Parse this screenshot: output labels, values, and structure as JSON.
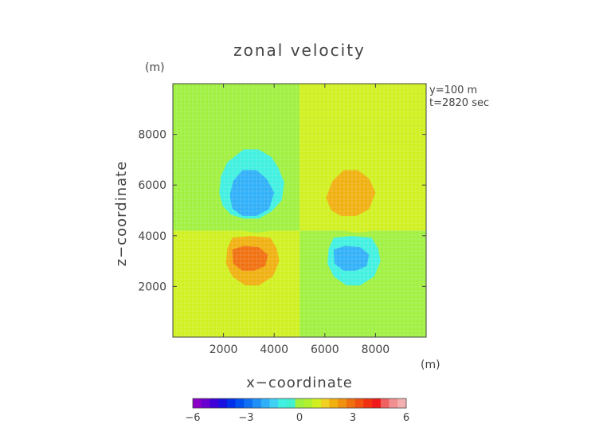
{
  "chart_data": {
    "type": "heatmap",
    "title": "zonal velocity",
    "xlabel": "x−coordinate",
    "ylabel": "z−coordinate",
    "x_unit": "(m)",
    "y_unit": "(m)",
    "annotations": [
      "y=100 m",
      "t=2820 sec"
    ],
    "xlim": [
      0,
      10000
    ],
    "ylim": [
      0,
      10000
    ],
    "x_ticks": [
      2000,
      4000,
      6000,
      8000
    ],
    "x_tick_labels": [
      "2000",
      "4000",
      "6000",
      "8000"
    ],
    "y_ticks": [
      2000,
      4000,
      6000,
      8000
    ],
    "y_tick_labels": [
      "2000",
      "4000",
      "6000",
      "8000"
    ],
    "colorbar": {
      "min": -6,
      "max": 6,
      "tick_values": [
        -6,
        -3,
        0,
        3,
        6
      ],
      "tick_labels": [
        "−6",
        "−3",
        "0",
        "3",
        "6"
      ],
      "colors": [
        "#8a00c8",
        "#6a00d0",
        "#4000d8",
        "#1a10e0",
        "#0030ea",
        "#0050f0",
        "#1070f4",
        "#2090f8",
        "#30b0f8",
        "#40d0f4",
        "#40f0e0",
        "#40f0d0",
        "#a0f040",
        "#b0f030",
        "#d0f020",
        "#f0d020",
        "#f0b010",
        "#f09010",
        "#f07010",
        "#f05010",
        "#f03010",
        "#f01818",
        "#f06060",
        "#f09090",
        "#f4b0b0"
      ]
    },
    "field": {
      "background": [
        {
          "x": [
            0,
            5000
          ],
          "z": [
            4200,
            10000
          ],
          "value": 0
        },
        {
          "x": [
            5000,
            10000
          ],
          "z": [
            4200,
            10000
          ],
          "value": 1
        },
        {
          "x": [
            0,
            5000
          ],
          "z": [
            0,
            4200
          ],
          "value": 1
        },
        {
          "x": [
            5000,
            10000
          ],
          "z": [
            0,
            4200
          ],
          "value": 0
        }
      ],
      "contours": [
        {
          "value": -1,
          "points": [
            [
              2800,
              7410
            ],
            [
              3380,
              7410
            ],
            [
              3900,
              7100
            ],
            [
              4180,
              6650
            ],
            [
              4400,
              6100
            ],
            [
              4300,
              5400
            ],
            [
              3900,
              4960
            ],
            [
              3400,
              4680
            ],
            [
              2800,
              4680
            ],
            [
              2300,
              4830
            ],
            [
              1970,
              5180
            ],
            [
              1830,
              5700
            ],
            [
              1900,
              6350
            ],
            [
              2150,
              6900
            ]
          ]
        },
        {
          "value": -2,
          "points": [
            [
              2750,
              6590
            ],
            [
              3300,
              6590
            ],
            [
              3700,
              6250
            ],
            [
              4000,
              5700
            ],
            [
              3800,
              5050
            ],
            [
              3300,
              4780
            ],
            [
              2750,
              4780
            ],
            [
              2350,
              5070
            ],
            [
              2250,
              5600
            ],
            [
              2380,
              6150
            ]
          ]
        },
        {
          "value": 1,
          "points": [
            [
              6800,
              7410
            ],
            [
              7380,
              7400
            ],
            [
              8000,
              7000
            ],
            [
              8350,
              6400
            ],
            [
              8400,
              5800
            ],
            [
              8150,
              5100
            ],
            [
              7700,
              4650
            ],
            [
              7000,
              4450
            ],
            [
              6400,
              4450
            ],
            [
              5800,
              4620
            ],
            [
              5420,
              4950
            ],
            [
              5350,
              5500
            ],
            [
              5550,
              6000
            ],
            [
              5650,
              6500
            ],
            [
              6000,
              7000
            ]
          ]
        },
        {
          "value": 2,
          "points": [
            [
              6750,
              6590
            ],
            [
              7300,
              6590
            ],
            [
              7750,
              6250
            ],
            [
              8000,
              5700
            ],
            [
              7750,
              5050
            ],
            [
              7250,
              4780
            ],
            [
              6650,
              4780
            ],
            [
              6250,
              5000
            ],
            [
              6050,
              5500
            ],
            [
              6300,
              6150
            ]
          ]
        },
        {
          "value": 0,
          "points": [
            [
              2800,
              4360
            ],
            [
              3300,
              4420
            ],
            [
              3850,
              4360
            ],
            [
              3950,
              4200
            ],
            [
              3300,
              4120
            ],
            [
              2700,
              4200
            ]
          ]
        },
        {
          "value": 1,
          "points": [
            [
              6800,
              4360
            ],
            [
              7300,
              4420
            ],
            [
              7850,
              4360
            ],
            [
              7950,
              4200
            ],
            [
              7300,
              4120
            ],
            [
              6700,
              4200
            ]
          ]
        },
        {
          "value": 2,
          "points": [
            [
              2350,
              3920
            ],
            [
              3050,
              3990
            ],
            [
              3850,
              3920
            ],
            [
              4100,
              3500
            ],
            [
              4200,
              3000
            ],
            [
              3950,
              2400
            ],
            [
              3400,
              2040
            ],
            [
              2850,
              2040
            ],
            [
              2350,
              2400
            ],
            [
              2100,
              2900
            ],
            [
              2150,
              3500
            ]
          ]
        },
        {
          "value": 3,
          "points": [
            [
              2350,
              3450
            ],
            [
              2800,
              3600
            ],
            [
              3400,
              3550
            ],
            [
              3750,
              3250
            ],
            [
              3650,
              2800
            ],
            [
              3200,
              2620
            ],
            [
              2750,
              2620
            ],
            [
              2380,
              2900
            ]
          ]
        },
        {
          "value": -1,
          "points": [
            [
              6350,
              3920
            ],
            [
              7050,
              3990
            ],
            [
              7850,
              3920
            ],
            [
              8100,
              3500
            ],
            [
              8200,
              3000
            ],
            [
              7950,
              2400
            ],
            [
              7400,
              2040
            ],
            [
              6850,
              2040
            ],
            [
              6350,
              2400
            ],
            [
              6100,
              2900
            ],
            [
              6150,
              3500
            ]
          ]
        },
        {
          "value": -2,
          "points": [
            [
              6350,
              3450
            ],
            [
              6800,
              3600
            ],
            [
              7400,
              3550
            ],
            [
              7750,
              3250
            ],
            [
              7650,
              2800
            ],
            [
              7200,
              2620
            ],
            [
              6750,
              2620
            ],
            [
              6380,
              2900
            ]
          ]
        }
      ]
    }
  }
}
